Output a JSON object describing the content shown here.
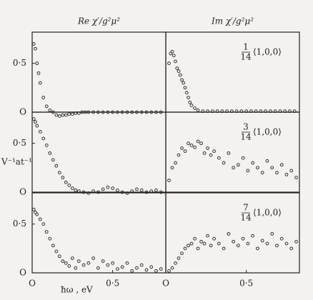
{
  "chart_data": [
    {
      "type": "scatter",
      "title": "Re χ′/g²μ²",
      "x": [
        0.01,
        0.02,
        0.03,
        0.04,
        0.05,
        0.07,
        0.09,
        0.11,
        0.13,
        0.15,
        0.17,
        0.19,
        0.21,
        0.23,
        0.25,
        0.27,
        0.29,
        0.31,
        0.33,
        0.35,
        0.38,
        0.41,
        0.44,
        0.47,
        0.5,
        0.53,
        0.56,
        0.59,
        0.62,
        0.65,
        0.68,
        0.71,
        0.74,
        0.77,
        0.8
      ],
      "values": [
        0.7,
        0.65,
        0.5,
        0.4,
        0.3,
        0.15,
        0.06,
        0.02,
        0.0,
        -0.03,
        -0.04,
        -0.03,
        -0.03,
        -0.02,
        -0.02,
        -0.01,
        -0.01,
        0,
        0,
        0,
        0,
        0,
        0,
        0,
        0,
        0,
        0,
        0,
        0,
        0,
        0,
        0,
        0,
        0,
        0
      ],
      "xlim": [
        0,
        0.83
      ],
      "ylim": [
        0,
        0.82
      ],
      "yticks": [
        {
          "value": 0,
          "label": "O"
        },
        {
          "value": 0.5,
          "label": "0·5"
        }
      ]
    },
    {
      "type": "scatter",
      "title": "Im χ′/g²μ²",
      "annotation": {
        "numerator": "1",
        "denominator": "14",
        "text": "⟨1,0,0⟩"
      },
      "x": [
        0.02,
        0.03,
        0.04,
        0.05,
        0.06,
        0.07,
        0.08,
        0.09,
        0.1,
        0.11,
        0.12,
        0.13,
        0.14,
        0.15,
        0.16,
        0.18,
        0.2,
        0.23,
        0.26,
        0.29,
        0.32,
        0.35,
        0.38,
        0.41,
        0.44,
        0.47,
        0.5,
        0.53,
        0.56,
        0.59,
        0.62,
        0.65,
        0.68,
        0.71,
        0.74,
        0.77,
        0.8
      ],
      "values": [
        0.5,
        0.6,
        0.62,
        0.58,
        0.52,
        0.45,
        0.42,
        0.38,
        0.33,
        0.3,
        0.25,
        0.2,
        0.15,
        0.1,
        0.07,
        0.04,
        0.02,
        0.01,
        0.01,
        0.01,
        0.01,
        0.01,
        0.01,
        0.01,
        0.01,
        0.01,
        0.01,
        0.01,
        0.01,
        0.01,
        0.01,
        0.01,
        0.01,
        0.01,
        0.01,
        0.01,
        0.01
      ],
      "xlim": [
        0,
        0.83
      ],
      "ylim": [
        0,
        0.82
      ]
    },
    {
      "type": "scatter",
      "ylabel": "V⁻¹at⁻¹",
      "x": [
        0.01,
        0.02,
        0.03,
        0.05,
        0.07,
        0.09,
        0.11,
        0.13,
        0.15,
        0.17,
        0.19,
        0.21,
        0.23,
        0.25,
        0.27,
        0.29,
        0.32,
        0.35,
        0.38,
        0.41,
        0.44,
        0.47,
        0.5,
        0.53,
        0.56,
        0.59,
        0.62,
        0.65,
        0.68,
        0.71,
        0.74,
        0.77,
        0.8
      ],
      "values": [
        0.75,
        0.72,
        0.68,
        0.62,
        0.55,
        0.48,
        0.4,
        0.33,
        0.27,
        0.2,
        0.15,
        0.1,
        0.07,
        0.04,
        0.02,
        0.01,
        0.0,
        -0.01,
        0.01,
        0.0,
        0.03,
        0.05,
        0.04,
        0.02,
        0.0,
        -0.01,
        0.01,
        0.03,
        0.02,
        0.0,
        0.01,
        0.02,
        0.0
      ],
      "xlim": [
        0,
        0.83
      ],
      "ylim": [
        0,
        0.82
      ],
      "yticks": [
        {
          "value": 0,
          "label": "O"
        },
        {
          "value": 0.5,
          "label": "0·5"
        }
      ]
    },
    {
      "type": "scatter",
      "annotation": {
        "numerator": "3",
        "denominator": "14",
        "text": "⟨1,0,0⟩"
      },
      "x": [
        0.02,
        0.04,
        0.06,
        0.08,
        0.1,
        0.12,
        0.14,
        0.16,
        0.18,
        0.2,
        0.22,
        0.24,
        0.26,
        0.28,
        0.3,
        0.33,
        0.36,
        0.39,
        0.42,
        0.45,
        0.48,
        0.51,
        0.54,
        0.57,
        0.6,
        0.63,
        0.66,
        0.69,
        0.72,
        0.75,
        0.78,
        0.81
      ],
      "values": [
        0.12,
        0.25,
        0.3,
        0.38,
        0.45,
        0.42,
        0.5,
        0.48,
        0.46,
        0.52,
        0.5,
        0.4,
        0.45,
        0.38,
        0.42,
        0.35,
        0.3,
        0.4,
        0.25,
        0.28,
        0.35,
        0.22,
        0.3,
        0.25,
        0.2,
        0.32,
        0.25,
        0.2,
        0.28,
        0.18,
        0.22,
        0.15
      ],
      "xlim": [
        0,
        0.83
      ],
      "ylim": [
        0,
        0.82
      ]
    },
    {
      "type": "scatter",
      "xlabel": "ħω , eV",
      "x": [
        0.01,
        0.02,
        0.03,
        0.05,
        0.07,
        0.09,
        0.11,
        0.13,
        0.15,
        0.17,
        0.19,
        0.21,
        0.23,
        0.25,
        0.27,
        0.29,
        0.32,
        0.35,
        0.38,
        0.41,
        0.44,
        0.47,
        0.5,
        0.53,
        0.56,
        0.59,
        0.62,
        0.65,
        0.68,
        0.71,
        0.74,
        0.77,
        0.8
      ],
      "values": [
        0.65,
        0.62,
        0.6,
        0.55,
        0.5,
        0.42,
        0.35,
        0.28,
        0.22,
        0.17,
        0.12,
        0.1,
        0.07,
        0.15,
        0.05,
        0.12,
        0.08,
        0.1,
        0.15,
        0.05,
        0.12,
        0.08,
        0.1,
        0.04,
        0.06,
        0.1,
        0.02,
        0.05,
        0.08,
        0.03,
        0.06,
        0.02,
        0.04
      ],
      "xlim": [
        0,
        0.83
      ],
      "ylim": [
        0,
        0.82
      ],
      "yticks": [
        {
          "value": 0,
          "label": "O"
        },
        {
          "value": 0.5,
          "label": "0·5"
        }
      ],
      "xticks": [
        {
          "value": 0,
          "label": "O"
        },
        {
          "value": 0.5,
          "label": "0·5"
        }
      ]
    },
    {
      "type": "scatter",
      "annotation": {
        "numerator": "7",
        "denominator": "14",
        "text": "⟨1,0,0⟩"
      },
      "x": [
        0.02,
        0.04,
        0.06,
        0.08,
        0.1,
        0.12,
        0.14,
        0.16,
        0.18,
        0.2,
        0.22,
        0.24,
        0.26,
        0.28,
        0.3,
        0.33,
        0.36,
        0.39,
        0.42,
        0.45,
        0.48,
        0.51,
        0.54,
        0.57,
        0.6,
        0.63,
        0.66,
        0.69,
        0.72,
        0.75,
        0.78,
        0.81
      ],
      "values": [
        0.02,
        0.05,
        0.1,
        0.15,
        0.2,
        0.25,
        0.28,
        0.3,
        0.35,
        0.25,
        0.32,
        0.3,
        0.38,
        0.28,
        0.35,
        0.3,
        0.25,
        0.4,
        0.32,
        0.28,
        0.35,
        0.3,
        0.38,
        0.25,
        0.33,
        0.3,
        0.4,
        0.28,
        0.35,
        0.3,
        0.25,
        0.32
      ],
      "xlim": [
        0,
        0.83
      ],
      "ylim": [
        0,
        0.82
      ],
      "xticks": [
        {
          "value": 0,
          "label": "O"
        },
        {
          "value": 0.5,
          "label": "0·5"
        }
      ]
    }
  ]
}
